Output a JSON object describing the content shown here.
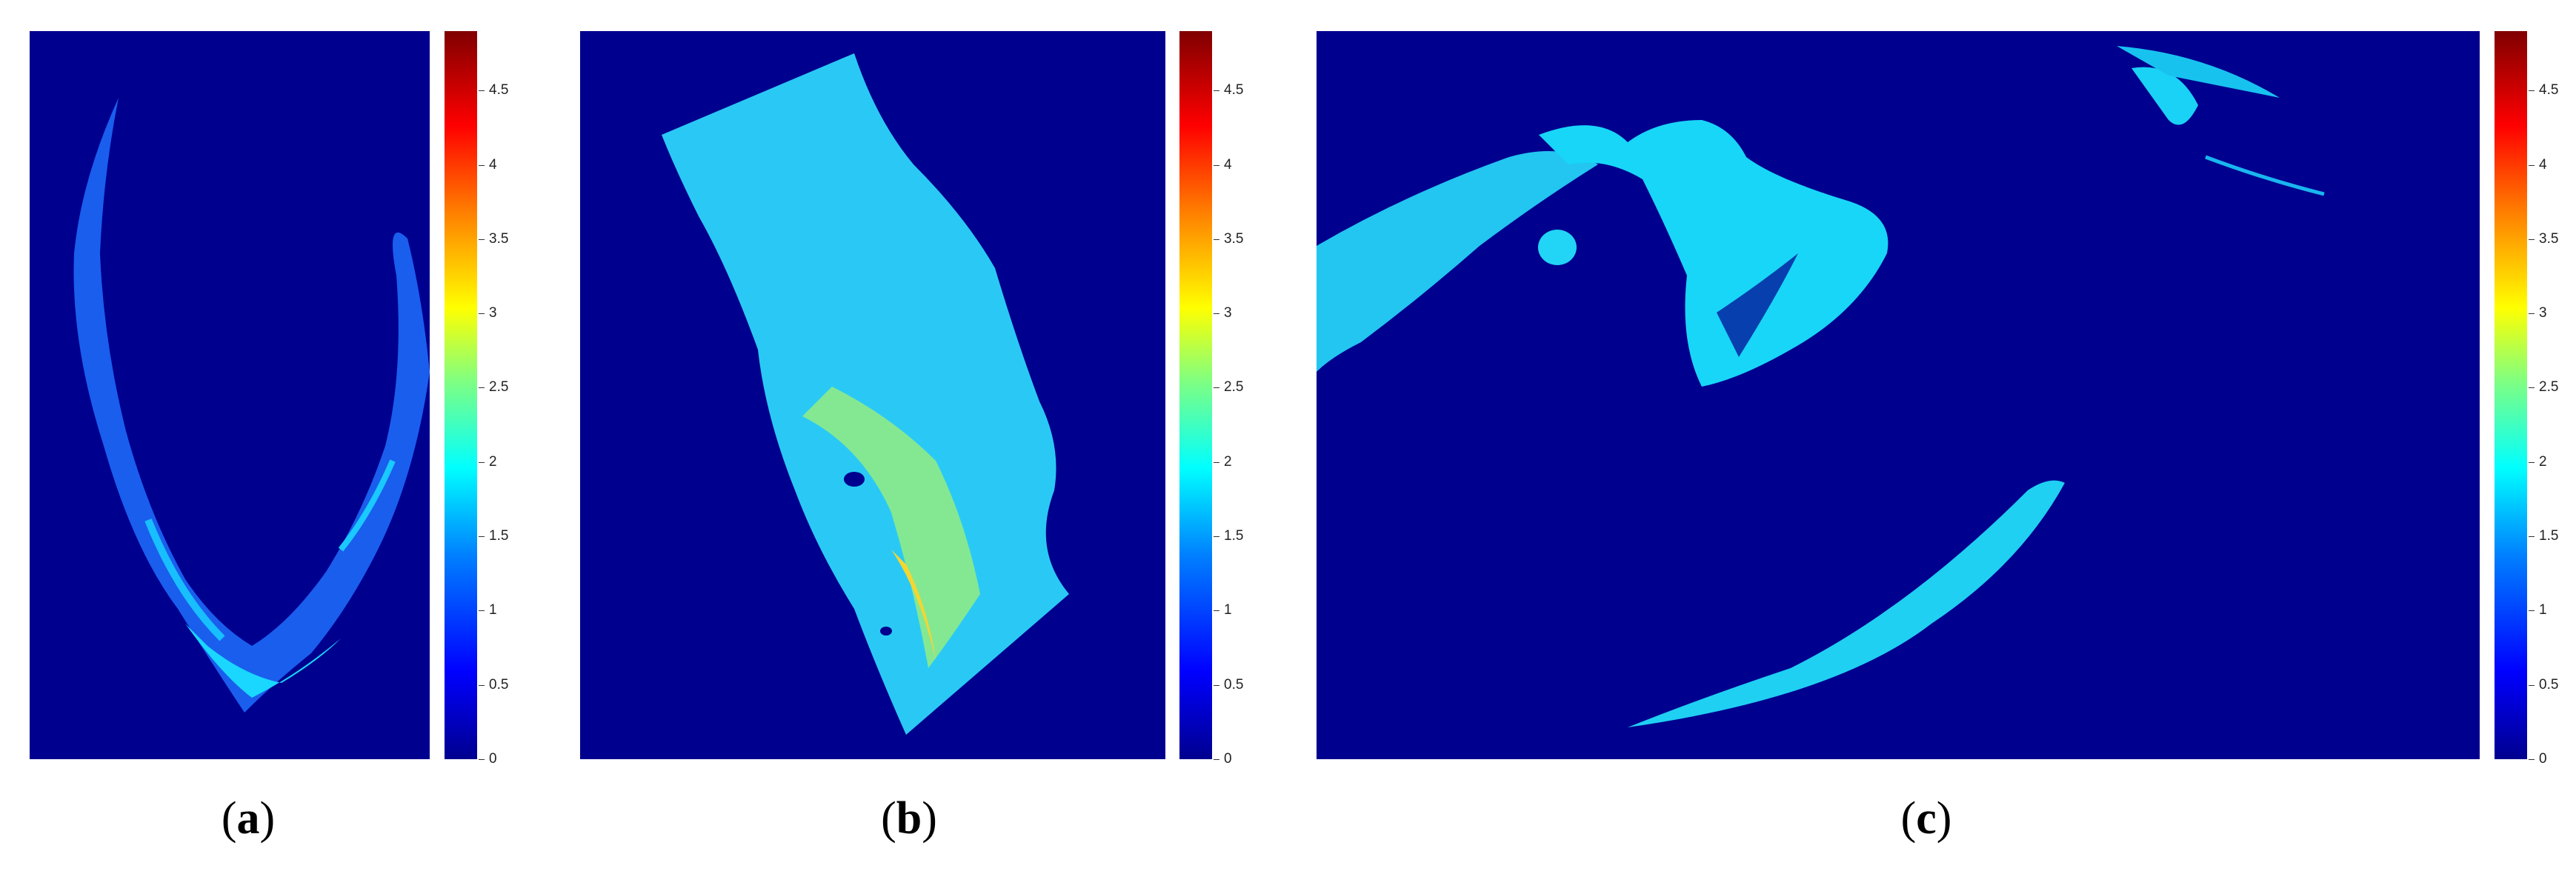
{
  "panels": [
    {
      "label_open": "(",
      "label_letter": "a",
      "label_close": ")"
    },
    {
      "label_open": "(",
      "label_letter": "b",
      "label_close": ")"
    },
    {
      "label_open": "(",
      "label_letter": "c",
      "label_close": ")"
    }
  ],
  "colorbar": {
    "colormap": "jet",
    "range": [
      0,
      4.9
    ],
    "ticks": [
      "0",
      "0.5",
      "1",
      "1.5",
      "2",
      "2.5",
      "3",
      "3.5",
      "4",
      "4.5"
    ],
    "background_color": "#00008f"
  }
}
